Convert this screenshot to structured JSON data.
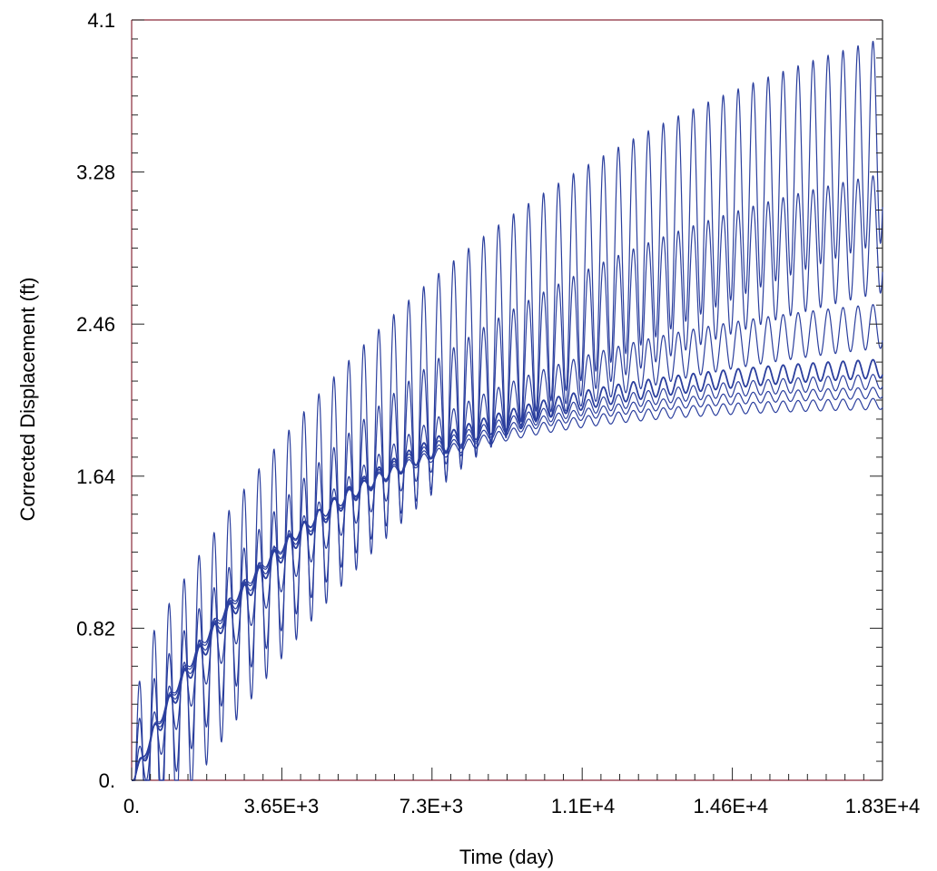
{
  "chart_data": {
    "type": "line",
    "xlabel": "Time (day)",
    "ylabel": "Corrected Displacement (ft)",
    "xlim": [
      0,
      18300
    ],
    "ylim": [
      0,
      4.1
    ],
    "x_ticks": [
      "0.",
      "3.65E+3",
      "7.3E+3",
      "1.1E+4",
      "1.46E+4",
      "1.83E+4"
    ],
    "x_tick_values": [
      0,
      3650,
      7300,
      11000,
      14600,
      18300
    ],
    "y_ticks": [
      "0.",
      "0.82",
      "1.64",
      "2.46",
      "3.28",
      "4.1"
    ],
    "y_tick_values": [
      0,
      0.82,
      1.64,
      2.46,
      3.28,
      4.1
    ],
    "grid": false,
    "line_color": "#2b3f9e",
    "cycle_period_days": 365,
    "series": [
      {
        "trend_start": 0.0,
        "trend_end": 3.45,
        "amp_start": 0.6,
        "amp_end": 0.55,
        "curvature": 0.6
      },
      {
        "trend_start": 0.0,
        "trend_end": 2.95,
        "amp_start": 0.35,
        "amp_end": 0.32,
        "curvature": 0.7
      },
      {
        "trend_start": 0.0,
        "trend_end": 2.45,
        "amp_start": 0.15,
        "amp_end": 0.12,
        "curvature": 1.0
      },
      {
        "trend_start": 0.0,
        "trend_end": 2.22,
        "amp_start": 0.05,
        "amp_end": 0.05,
        "curvature": 1.3
      },
      {
        "trend_start": 0.0,
        "trend_end": 2.15,
        "amp_start": 0.04,
        "amp_end": 0.04,
        "curvature": 1.4
      },
      {
        "trend_start": 0.0,
        "trend_end": 2.09,
        "amp_start": 0.03,
        "amp_end": 0.03,
        "curvature": 1.5
      },
      {
        "trend_start": 0.0,
        "trend_end": 2.03,
        "amp_start": 0.03,
        "amp_end": 0.03,
        "curvature": 1.6
      }
    ]
  }
}
